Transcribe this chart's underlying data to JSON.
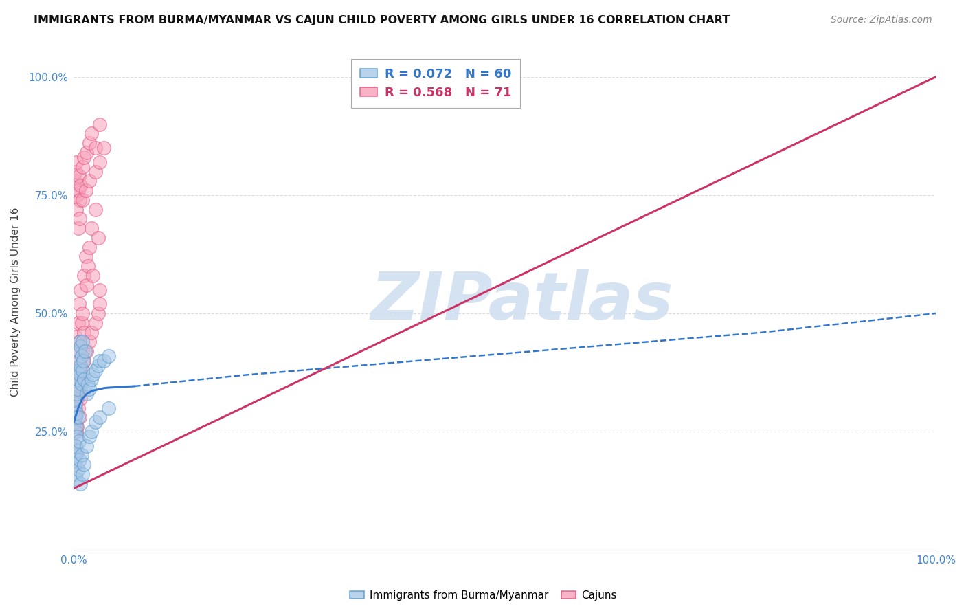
{
  "title": "IMMIGRANTS FROM BURMA/MYANMAR VS CAJUN CHILD POVERTY AMONG GIRLS UNDER 16 CORRELATION CHART",
  "source": "Source: ZipAtlas.com",
  "ylabel": "Child Poverty Among Girls Under 16",
  "xlim": [
    0,
    1
  ],
  "ylim": [
    0,
    1.05
  ],
  "ytick_positions": [
    0.25,
    0.5,
    0.75,
    1.0
  ],
  "ytick_labels": [
    "25.0%",
    "50.0%",
    "75.0%",
    "100.0%"
  ],
  "xtick_positions": [
    0.0,
    1.0
  ],
  "xtick_labels": [
    "0.0%",
    "100.0%"
  ],
  "legend_r1": "0.072",
  "legend_n1": "60",
  "legend_r2": "0.568",
  "legend_n2": "71",
  "blue_fill": "#a8c8e8",
  "blue_edge": "#5599cc",
  "pink_fill": "#f8a0b8",
  "pink_edge": "#e05080",
  "blue_line_color": "#3377cc",
  "pink_line_color": "#cc3366",
  "watermark": "ZIPatlas",
  "watermark_color": "#d0dff0",
  "background_color": "#ffffff",
  "grid_color": "#dddddd",
  "blue_scatter_x": [
    0.001,
    0.001,
    0.001,
    0.001,
    0.002,
    0.002,
    0.002,
    0.002,
    0.003,
    0.003,
    0.003,
    0.004,
    0.004,
    0.004,
    0.005,
    0.005,
    0.005,
    0.006,
    0.006,
    0.007,
    0.007,
    0.008,
    0.008,
    0.009,
    0.009,
    0.01,
    0.01,
    0.011,
    0.012,
    0.013,
    0.015,
    0.016,
    0.018,
    0.02,
    0.022,
    0.025,
    0.028,
    0.03,
    0.035,
    0.04,
    0.001,
    0.001,
    0.002,
    0.002,
    0.003,
    0.003,
    0.004,
    0.005,
    0.006,
    0.007,
    0.008,
    0.009,
    0.01,
    0.012,
    0.015,
    0.018,
    0.02,
    0.025,
    0.03,
    0.04
  ],
  "blue_scatter_y": [
    0.3,
    0.27,
    0.32,
    0.25,
    0.28,
    0.35,
    0.31,
    0.22,
    0.33,
    0.29,
    0.26,
    0.38,
    0.34,
    0.24,
    0.4,
    0.36,
    0.28,
    0.42,
    0.38,
    0.44,
    0.37,
    0.43,
    0.39,
    0.41,
    0.35,
    0.44,
    0.38,
    0.4,
    0.36,
    0.42,
    0.33,
    0.35,
    0.34,
    0.36,
    0.37,
    0.38,
    0.39,
    0.4,
    0.4,
    0.41,
    0.2,
    0.18,
    0.22,
    0.16,
    0.19,
    0.15,
    0.21,
    0.17,
    0.23,
    0.19,
    0.14,
    0.2,
    0.16,
    0.18,
    0.22,
    0.24,
    0.25,
    0.27,
    0.28,
    0.3
  ],
  "pink_scatter_x": [
    0.001,
    0.001,
    0.001,
    0.002,
    0.002,
    0.003,
    0.003,
    0.004,
    0.004,
    0.005,
    0.005,
    0.006,
    0.006,
    0.007,
    0.008,
    0.008,
    0.009,
    0.01,
    0.01,
    0.012,
    0.012,
    0.014,
    0.015,
    0.016,
    0.018,
    0.02,
    0.022,
    0.025,
    0.028,
    0.03,
    0.001,
    0.002,
    0.003,
    0.004,
    0.005,
    0.006,
    0.007,
    0.008,
    0.01,
    0.012,
    0.015,
    0.018,
    0.02,
    0.025,
    0.03,
    0.001,
    0.002,
    0.003,
    0.004,
    0.005,
    0.006,
    0.007,
    0.008,
    0.009,
    0.01,
    0.012,
    0.015,
    0.018,
    0.02,
    0.025,
    0.028,
    0.03,
    0.003,
    0.005,
    0.007,
    0.01,
    0.014,
    0.018,
    0.025,
    0.03,
    0.035
  ],
  "pink_scatter_y": [
    0.28,
    0.35,
    0.22,
    0.45,
    0.3,
    0.38,
    0.25,
    0.42,
    0.32,
    0.48,
    0.36,
    0.52,
    0.4,
    0.44,
    0.55,
    0.38,
    0.48,
    0.5,
    0.42,
    0.58,
    0.46,
    0.62,
    0.56,
    0.6,
    0.64,
    0.68,
    0.58,
    0.72,
    0.66,
    0.55,
    0.78,
    0.8,
    0.82,
    0.75,
    0.76,
    0.79,
    0.74,
    0.77,
    0.81,
    0.83,
    0.84,
    0.86,
    0.88,
    0.85,
    0.9,
    0.18,
    0.22,
    0.2,
    0.26,
    0.3,
    0.34,
    0.28,
    0.32,
    0.36,
    0.38,
    0.4,
    0.42,
    0.44,
    0.46,
    0.48,
    0.5,
    0.52,
    0.72,
    0.68,
    0.7,
    0.74,
    0.76,
    0.78,
    0.8,
    0.82,
    0.85
  ],
  "blue_line_x_solid": [
    0.0,
    0.005,
    0.01,
    0.015,
    0.02,
    0.025,
    0.03,
    0.035,
    0.04,
    0.05,
    0.06,
    0.07
  ],
  "blue_line_y_solid": [
    0.27,
    0.3,
    0.32,
    0.33,
    0.335,
    0.338,
    0.34,
    0.342,
    0.343,
    0.344,
    0.345,
    0.346
  ],
  "blue_line_x_dash": [
    0.07,
    0.2,
    0.4,
    0.6,
    0.8,
    1.0
  ],
  "blue_line_y_dash": [
    0.346,
    0.37,
    0.4,
    0.43,
    0.46,
    0.5
  ],
  "pink_line_x": [
    0.0,
    1.0
  ],
  "pink_line_y": [
    0.13,
    1.0
  ]
}
